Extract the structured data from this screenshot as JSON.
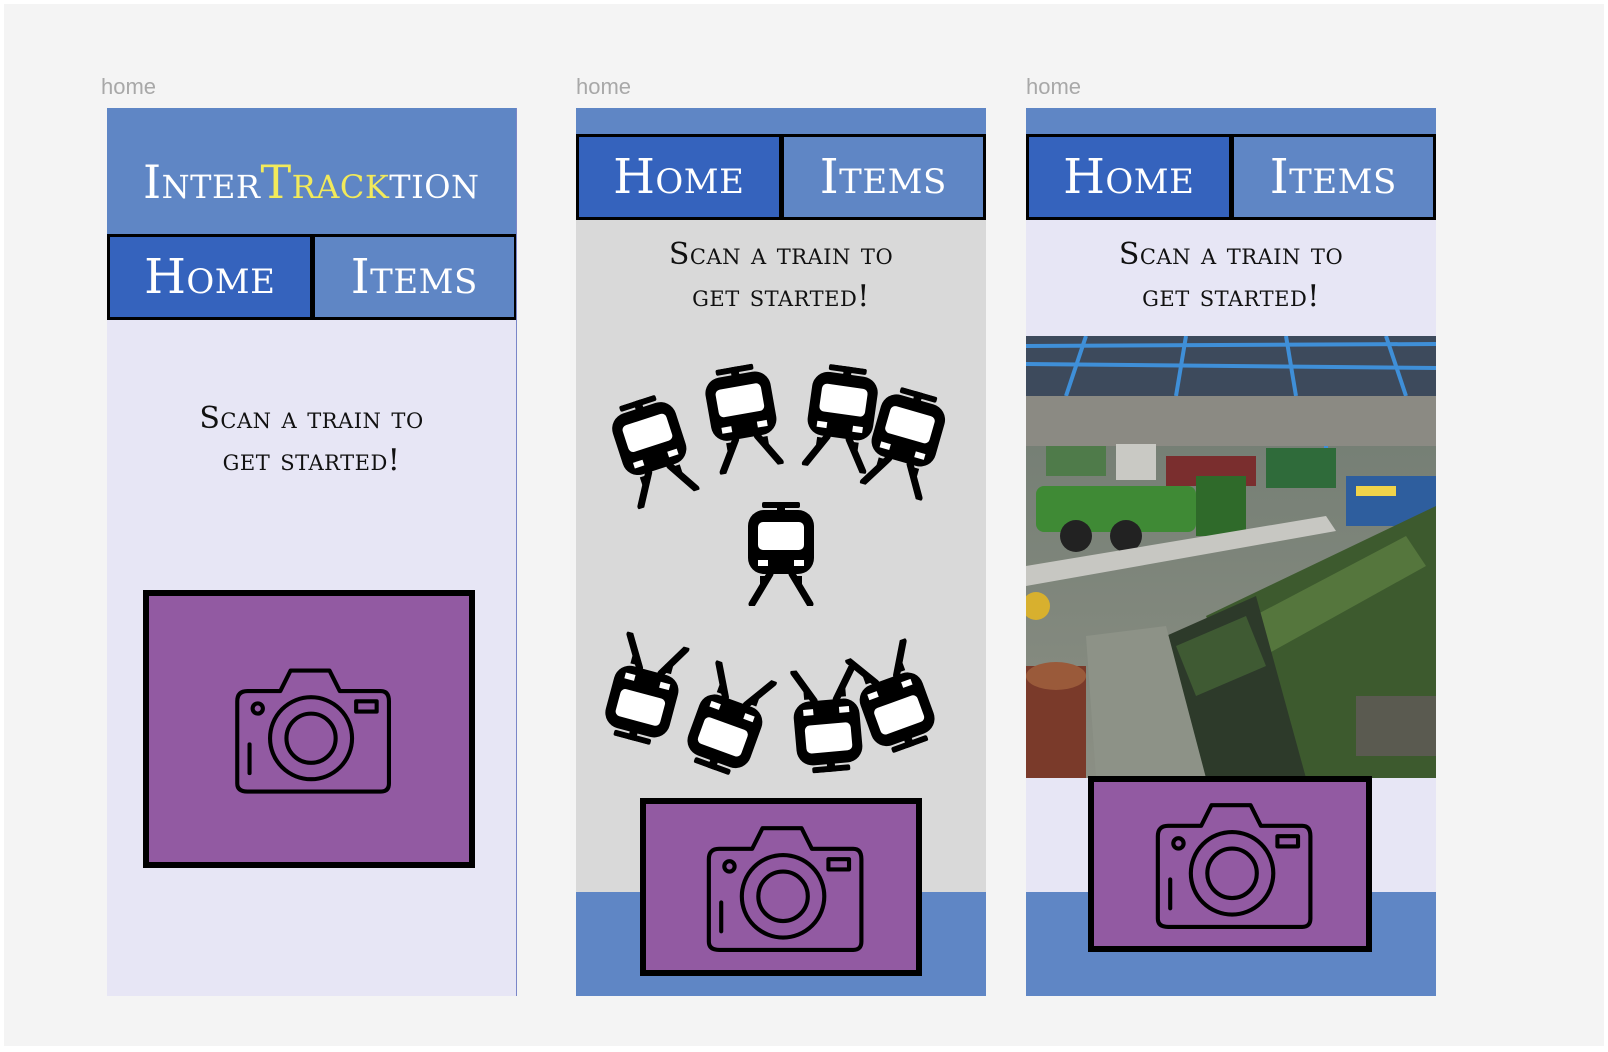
{
  "frames": [
    {
      "label": "home",
      "logo": {
        "part1": "Inter",
        "part2": "Track",
        "part3": "tion"
      },
      "nav": {
        "home": "Home",
        "items": "Items"
      },
      "scan_text_line1": "Scan a train to",
      "scan_text_line2": "get started!",
      "camera_icon": "camera-icon"
    },
    {
      "label": "home",
      "nav": {
        "home": "Home",
        "items": "Items"
      },
      "scan_text_line1": "Scan a train to",
      "scan_text_line2": "get started!",
      "decor_icon": "train-icon",
      "camera_icon": "camera-icon"
    },
    {
      "label": "home",
      "nav": {
        "home": "Home",
        "items": "Items"
      },
      "scan_text_line1": "Scan a train to",
      "scan_text_line2": "get started!",
      "image_subject": "railway-museum-hall",
      "camera_icon": "camera-icon"
    }
  ],
  "colors": {
    "canvas": "#f4f4f4",
    "banner_blue": "#5f86c5",
    "nav_active": "#3563bd",
    "logo_accent": "#f2ea5a",
    "page_lavender": "#e7e6f5",
    "page_grey": "#d9d9d9",
    "camera_purple": "#925aa2"
  }
}
